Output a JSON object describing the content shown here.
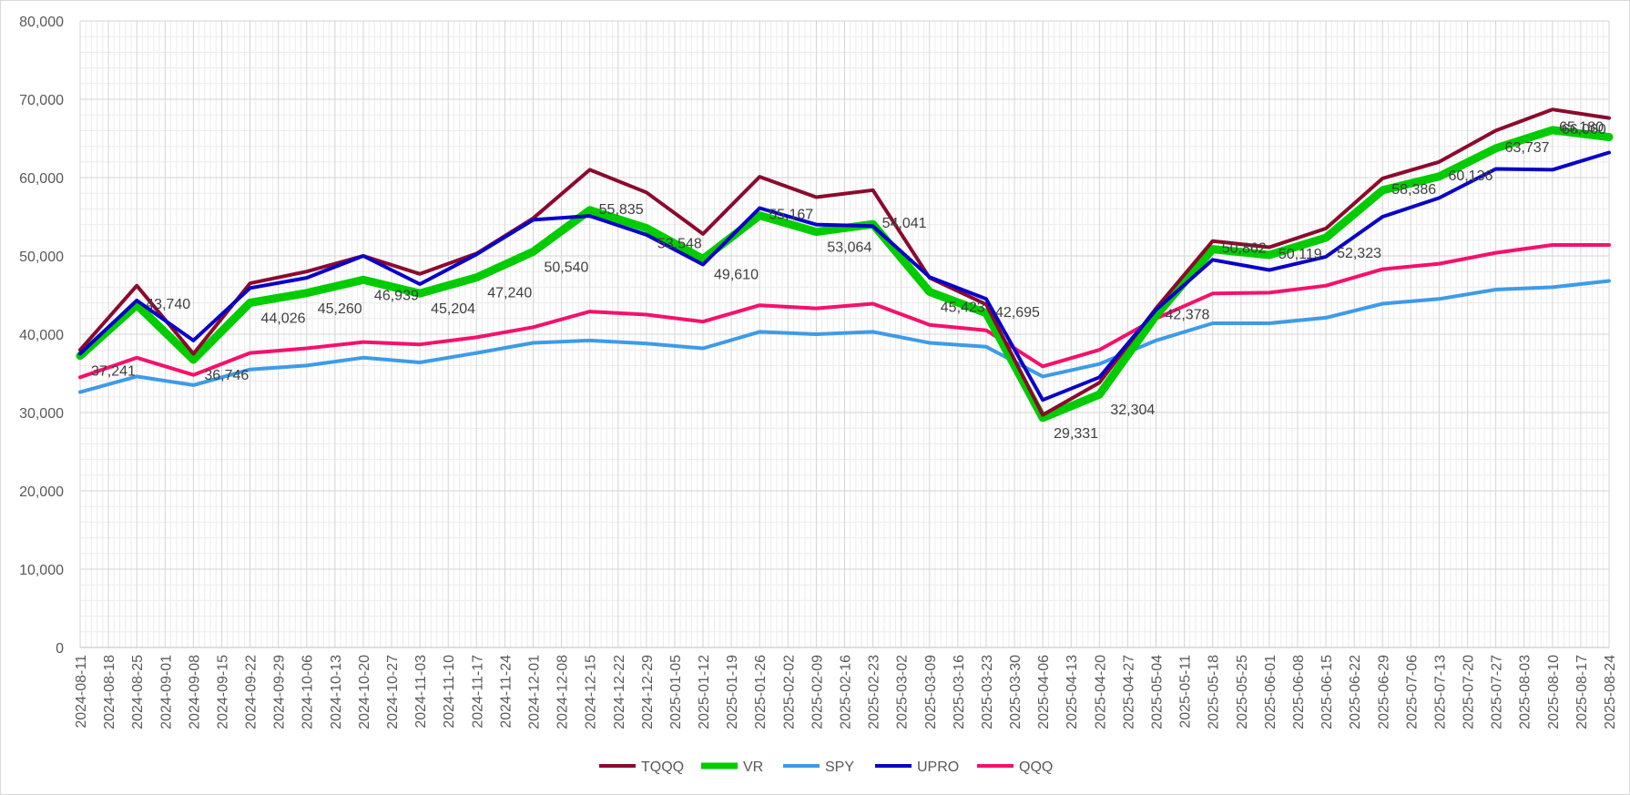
{
  "chart_data": {
    "type": "line",
    "title": "",
    "xlabel": "",
    "ylabel": "",
    "ylim": [
      0,
      80000
    ],
    "yticks": [
      0,
      10000,
      20000,
      30000,
      40000,
      50000,
      60000,
      70000,
      80000
    ],
    "ytick_labels": [
      "0",
      "10,000",
      "20,000",
      "30,000",
      "40,000",
      "50,000",
      "60,000",
      "70,000",
      "80,000"
    ],
    "grid": "major and minor gridlines on",
    "legend": "bottom",
    "categories": [
      "2024-08-11",
      "2024-08-18",
      "2024-08-25",
      "2024-09-01",
      "2024-09-08",
      "2024-09-15",
      "2024-09-22",
      "2024-09-29",
      "2024-10-06",
      "2024-10-13",
      "2024-10-20",
      "2024-10-27",
      "2024-11-03",
      "2024-11-10",
      "2024-11-17",
      "2024-11-24",
      "2024-12-01",
      "2024-12-08",
      "2024-12-15",
      "2024-12-22",
      "2024-12-29",
      "2025-01-05",
      "2025-01-12",
      "2025-01-19",
      "2025-01-26",
      "2025-02-02",
      "2025-02-09",
      "2025-02-16",
      "2025-02-23",
      "2025-03-02",
      "2025-03-09",
      "2025-03-16",
      "2025-03-23",
      "2025-03-30",
      "2025-04-06",
      "2025-04-13",
      "2025-04-20",
      "2025-04-27",
      "2025-05-04",
      "2025-05-11",
      "2025-05-18",
      "2025-05-25",
      "2025-06-01",
      "2025-06-08",
      "2025-06-15",
      "2025-06-22",
      "2025-06-29",
      "2025-07-06",
      "2025-07-13",
      "2025-07-20",
      "2025-07-27",
      "2025-08-03",
      "2025-08-10",
      "2025-08-17",
      "2025-08-24"
    ],
    "series": [
      {
        "name": "TQQQ",
        "color": "#8b0a2e",
        "width": 4,
        "points": [
          [
            "2024-08-11",
            38000
          ],
          [
            "2024-08-25",
            46200
          ],
          [
            "2024-09-08",
            37500
          ],
          [
            "2024-09-22",
            46500
          ],
          [
            "2024-10-06",
            48000
          ],
          [
            "2024-10-20",
            50000
          ],
          [
            "2024-11-03",
            47700
          ],
          [
            "2024-11-17",
            50300
          ],
          [
            "2024-12-01",
            54800
          ],
          [
            "2024-12-15",
            61000
          ],
          [
            "2024-12-29",
            58100
          ],
          [
            "2025-01-12",
            52800
          ],
          [
            "2025-01-26",
            60100
          ],
          [
            "2025-02-09",
            57500
          ],
          [
            "2025-02-23",
            58400
          ],
          [
            "2025-03-09",
            47200
          ],
          [
            "2025-03-23",
            43800
          ],
          [
            "2025-04-06",
            29700
          ],
          [
            "2025-04-20",
            33800
          ],
          [
            "2025-05-04",
            43300
          ],
          [
            "2025-05-18",
            51900
          ],
          [
            "2025-06-01",
            51100
          ],
          [
            "2025-06-15",
            53500
          ],
          [
            "2025-06-29",
            59900
          ],
          [
            "2025-07-13",
            62000
          ],
          [
            "2025-07-27",
            66000
          ],
          [
            "2025-08-10",
            68700
          ],
          [
            "2025-08-24",
            67600
          ]
        ]
      },
      {
        "name": "VR",
        "color": "#00cc00",
        "width": 9,
        "points": [
          [
            "2024-08-11",
            37241
          ],
          [
            "2024-08-25",
            43740
          ],
          [
            "2024-09-08",
            36746
          ],
          [
            "2024-09-22",
            44026
          ],
          [
            "2024-10-06",
            45260
          ],
          [
            "2024-10-20",
            46939
          ],
          [
            "2024-11-03",
            45204
          ],
          [
            "2024-11-17",
            47240
          ],
          [
            "2024-12-01",
            50540
          ],
          [
            "2024-12-15",
            55835
          ],
          [
            "2024-12-29",
            53548
          ],
          [
            "2025-01-12",
            49610
          ],
          [
            "2025-01-26",
            55167
          ],
          [
            "2025-02-09",
            53064
          ],
          [
            "2025-02-23",
            54041
          ],
          [
            "2025-03-09",
            45423
          ],
          [
            "2025-03-23",
            42695
          ],
          [
            "2025-04-06",
            29331
          ],
          [
            "2025-04-20",
            32304
          ],
          [
            "2025-05-04",
            42378
          ],
          [
            "2025-05-18",
            50862
          ],
          [
            "2025-06-01",
            50119
          ],
          [
            "2025-06-15",
            52323
          ],
          [
            "2025-06-29",
            58386
          ],
          [
            "2025-07-13",
            60136
          ],
          [
            "2025-07-27",
            63737
          ],
          [
            "2025-08-10",
            66060
          ],
          [
            "2025-08-24",
            65180
          ]
        ]
      },
      {
        "name": "SPY",
        "color": "#3d9be9",
        "width": 4,
        "points": [
          [
            "2024-08-11",
            32600
          ],
          [
            "2024-08-25",
            34600
          ],
          [
            "2024-09-08",
            33500
          ],
          [
            "2024-09-22",
            35500
          ],
          [
            "2024-10-06",
            36000
          ],
          [
            "2024-10-20",
            37000
          ],
          [
            "2024-11-03",
            36400
          ],
          [
            "2024-11-17",
            37600
          ],
          [
            "2024-12-01",
            38900
          ],
          [
            "2024-12-15",
            39200
          ],
          [
            "2024-12-29",
            38800
          ],
          [
            "2025-01-12",
            38200
          ],
          [
            "2025-01-26",
            40300
          ],
          [
            "2025-02-09",
            40000
          ],
          [
            "2025-02-23",
            40300
          ],
          [
            "2025-03-09",
            38900
          ],
          [
            "2025-03-23",
            38400
          ],
          [
            "2025-04-06",
            34600
          ],
          [
            "2025-04-20",
            36200
          ],
          [
            "2025-05-04",
            39200
          ],
          [
            "2025-05-18",
            41400
          ],
          [
            "2025-06-01",
            41400
          ],
          [
            "2025-06-15",
            42100
          ],
          [
            "2025-06-29",
            43900
          ],
          [
            "2025-07-13",
            44500
          ],
          [
            "2025-07-27",
            45700
          ],
          [
            "2025-08-10",
            46000
          ],
          [
            "2025-08-24",
            46800
          ]
        ]
      },
      {
        "name": "UPRO",
        "color": "#0a00c8",
        "width": 4,
        "points": [
          [
            "2024-08-11",
            37500
          ],
          [
            "2024-08-25",
            44300
          ],
          [
            "2024-09-08",
            39200
          ],
          [
            "2024-09-22",
            45900
          ],
          [
            "2024-10-06",
            47200
          ],
          [
            "2024-10-20",
            50000
          ],
          [
            "2024-11-03",
            46400
          ],
          [
            "2024-11-17",
            50200
          ],
          [
            "2024-12-01",
            54600
          ],
          [
            "2024-12-15",
            55100
          ],
          [
            "2024-12-29",
            52700
          ],
          [
            "2025-01-12",
            48900
          ],
          [
            "2025-01-26",
            56100
          ],
          [
            "2025-02-09",
            54000
          ],
          [
            "2025-02-23",
            53800
          ],
          [
            "2025-03-09",
            47300
          ],
          [
            "2025-03-23",
            44500
          ],
          [
            "2025-04-06",
            31600
          ],
          [
            "2025-04-20",
            34500
          ],
          [
            "2025-05-04",
            43100
          ],
          [
            "2025-05-18",
            49500
          ],
          [
            "2025-06-01",
            48200
          ],
          [
            "2025-06-15",
            49900
          ],
          [
            "2025-06-29",
            55000
          ],
          [
            "2025-07-13",
            57400
          ],
          [
            "2025-07-27",
            61100
          ],
          [
            "2025-08-10",
            61000
          ],
          [
            "2025-08-24",
            63200
          ]
        ]
      },
      {
        "name": "QQQ",
        "color": "#f5116b",
        "width": 4,
        "points": [
          [
            "2024-08-11",
            34500
          ],
          [
            "2024-08-25",
            37000
          ],
          [
            "2024-09-08",
            34800
          ],
          [
            "2024-09-22",
            37600
          ],
          [
            "2024-10-06",
            38200
          ],
          [
            "2024-10-20",
            39000
          ],
          [
            "2024-11-03",
            38700
          ],
          [
            "2024-11-17",
            39600
          ],
          [
            "2024-12-01",
            40900
          ],
          [
            "2024-12-15",
            42900
          ],
          [
            "2024-12-29",
            42500
          ],
          [
            "2025-01-12",
            41600
          ],
          [
            "2025-01-26",
            43700
          ],
          [
            "2025-02-09",
            43300
          ],
          [
            "2025-02-23",
            43900
          ],
          [
            "2025-03-09",
            41200
          ],
          [
            "2025-03-23",
            40500
          ],
          [
            "2025-04-06",
            35900
          ],
          [
            "2025-04-20",
            38000
          ],
          [
            "2025-05-04",
            42000
          ],
          [
            "2025-05-18",
            45200
          ],
          [
            "2025-06-01",
            45300
          ],
          [
            "2025-06-15",
            46200
          ],
          [
            "2025-06-29",
            48300
          ],
          [
            "2025-07-13",
            49000
          ],
          [
            "2025-07-27",
            50400
          ],
          [
            "2025-08-10",
            51400
          ],
          [
            "2025-08-24",
            51400
          ]
        ]
      }
    ],
    "data_labels": {
      "series": "VR",
      "items": [
        {
          "x": "2024-08-11",
          "text": "37,241",
          "pos": "below-right"
        },
        {
          "x": "2024-08-25",
          "text": "43,740",
          "pos": "right"
        },
        {
          "x": "2024-09-08",
          "text": "36,746",
          "pos": "below-right"
        },
        {
          "x": "2024-09-22",
          "text": "44,026",
          "pos": "below-right"
        },
        {
          "x": "2024-10-06",
          "text": "45,260",
          "pos": "below-right"
        },
        {
          "x": "2024-10-20",
          "text": "46,939",
          "pos": "below-right"
        },
        {
          "x": "2024-11-03",
          "text": "45,204",
          "pos": "below-right"
        },
        {
          "x": "2024-11-17",
          "text": "47,240",
          "pos": "below-right"
        },
        {
          "x": "2024-12-01",
          "text": "50,540",
          "pos": "below-right"
        },
        {
          "x": "2024-12-15",
          "text": "55,835",
          "pos": "right"
        },
        {
          "x": "2024-12-29",
          "text": "53,548",
          "pos": "below-right"
        },
        {
          "x": "2025-01-12",
          "text": "49,610",
          "pos": "below-right"
        },
        {
          "x": "2025-01-26",
          "text": "55,167",
          "pos": "right"
        },
        {
          "x": "2025-02-09",
          "text": "53,064",
          "pos": "below-right"
        },
        {
          "x": "2025-02-23",
          "text": "54,041",
          "pos": "right"
        },
        {
          "x": "2025-03-09",
          "text": "45,423",
          "pos": "below-right"
        },
        {
          "x": "2025-03-23",
          "text": "42,695",
          "pos": "right"
        },
        {
          "x": "2025-04-06",
          "text": "29,331",
          "pos": "below-right"
        },
        {
          "x": "2025-04-20",
          "text": "32,304",
          "pos": "below-right"
        },
        {
          "x": "2025-05-04",
          "text": "42,378",
          "pos": "right"
        },
        {
          "x": "2025-05-18",
          "text": "50,862",
          "pos": "right"
        },
        {
          "x": "2025-06-01",
          "text": "50,119",
          "pos": "right"
        },
        {
          "x": "2025-06-15",
          "text": "52,323",
          "pos": "below-right"
        },
        {
          "x": "2025-06-29",
          "text": "58,386",
          "pos": "right"
        },
        {
          "x": "2025-07-13",
          "text": "60,136",
          "pos": "right"
        },
        {
          "x": "2025-07-27",
          "text": "63,737",
          "pos": "right"
        },
        {
          "x": "2025-08-10",
          "text": "66,060",
          "pos": "right"
        },
        {
          "x": "2025-08-24",
          "text": "65,180",
          "pos": "left"
        }
      ]
    }
  }
}
